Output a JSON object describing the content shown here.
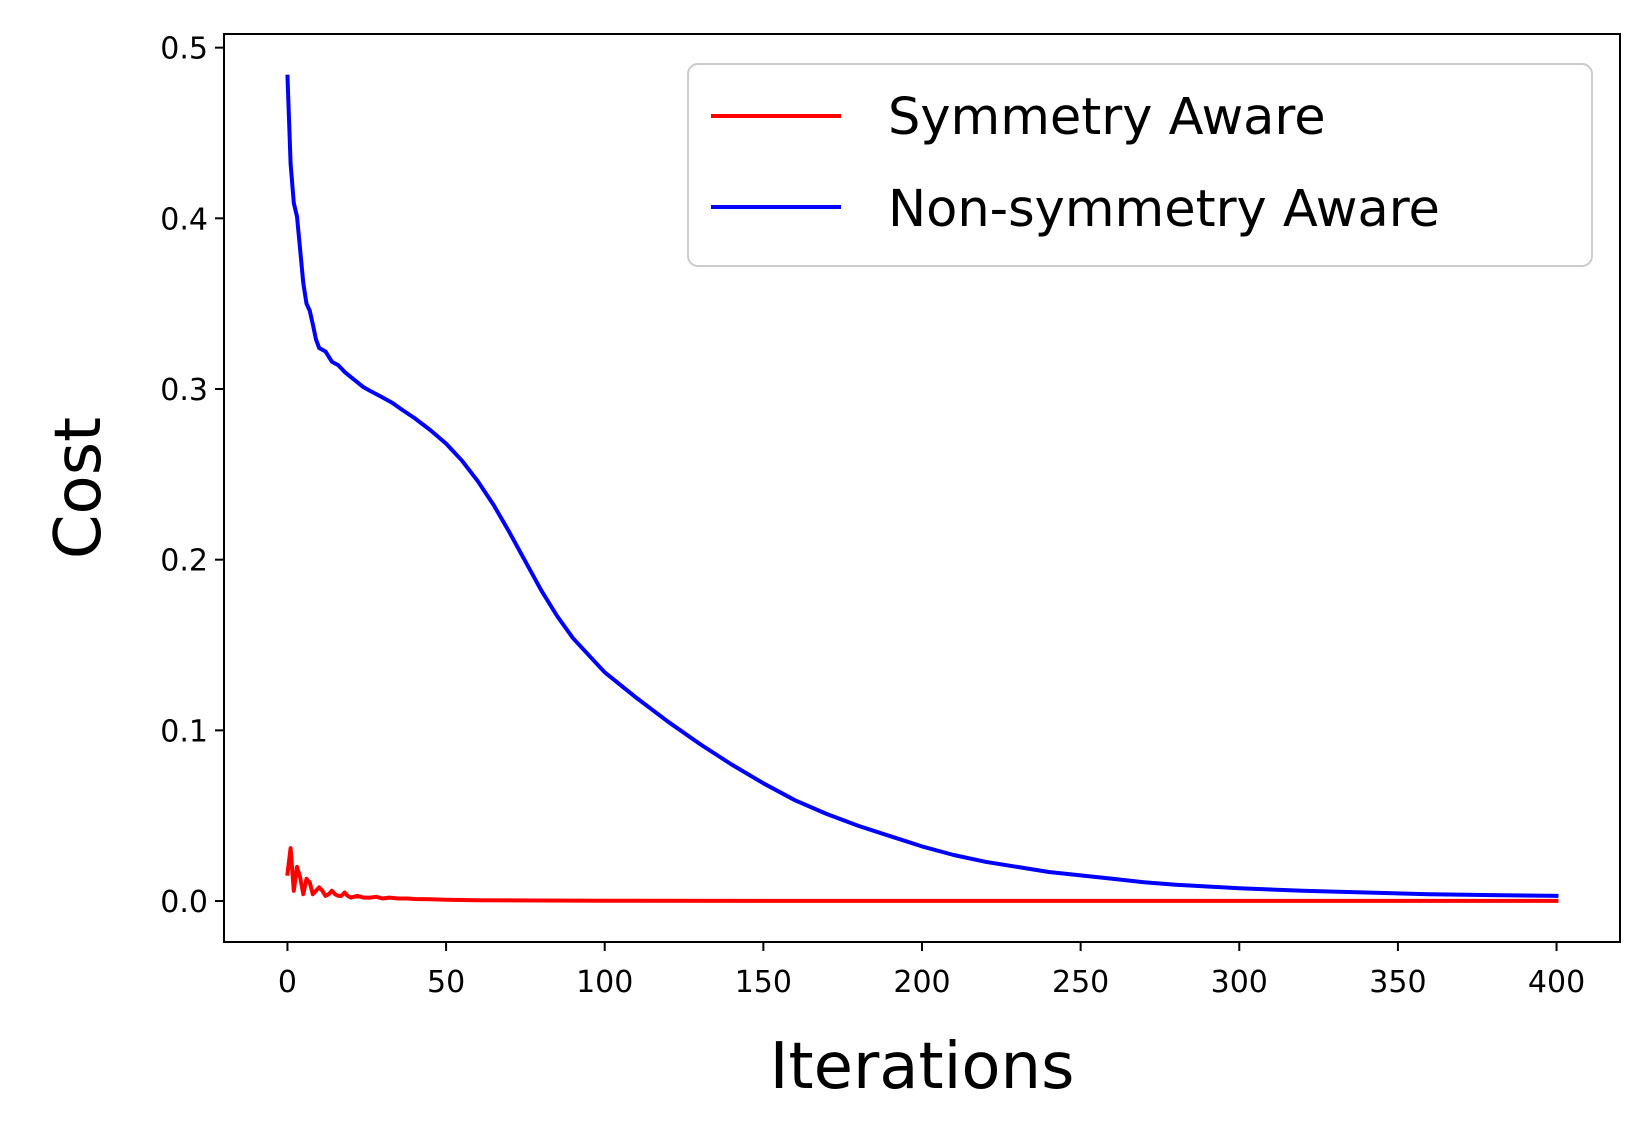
{
  "chart_data": {
    "type": "line",
    "title": "",
    "xlabel": "Iterations",
    "ylabel": "Cost",
    "xlim": [
      -20,
      420
    ],
    "ylim": [
      -0.024,
      0.508
    ],
    "xticks": [
      0,
      50,
      100,
      150,
      200,
      250,
      300,
      350,
      400
    ],
    "xtick_labels": [
      "0",
      "50",
      "100",
      "150",
      "200",
      "250",
      "300",
      "350",
      "400"
    ],
    "yticks": [
      0.0,
      0.1,
      0.2,
      0.3,
      0.4,
      0.5
    ],
    "ytick_labels": [
      "0.0",
      "0.1",
      "0.2",
      "0.3",
      "0.4",
      "0.5"
    ],
    "grid": false,
    "legend_position": "top-right",
    "series": [
      {
        "name": "Symmetry Aware",
        "color": "#ff0000",
        "x": [
          0,
          1,
          2,
          3,
          4,
          5,
          6,
          7,
          8,
          9,
          10,
          11,
          12,
          13,
          14,
          15,
          16,
          17,
          18,
          19,
          20,
          22,
          24,
          26,
          28,
          30,
          32,
          35,
          38,
          40,
          45,
          50,
          60,
          70,
          80,
          100,
          150,
          200,
          250,
          300,
          350,
          400
        ],
        "y": [
          0.016,
          0.031,
          0.006,
          0.02,
          0.014,
          0.004,
          0.013,
          0.011,
          0.004,
          0.006,
          0.008,
          0.006,
          0.003,
          0.004,
          0.006,
          0.004,
          0.003,
          0.003,
          0.005,
          0.003,
          0.002,
          0.003,
          0.002,
          0.002,
          0.0025,
          0.0015,
          0.002,
          0.0015,
          0.0015,
          0.0012,
          0.001,
          0.0008,
          0.0005,
          0.0004,
          0.0003,
          0.0002,
          0.0001,
          0.0001,
          0.0001,
          0.0001,
          0.0001,
          0.0001
        ]
      },
      {
        "name": "Non-symmetry Aware",
        "color": "#0000ff",
        "x": [
          0,
          1,
          2,
          3,
          4,
          5,
          6,
          7,
          8,
          9,
          10,
          12,
          14,
          16,
          18,
          20,
          22,
          24,
          26,
          28,
          30,
          33,
          36,
          40,
          45,
          50,
          55,
          60,
          65,
          70,
          75,
          80,
          85,
          90,
          95,
          100,
          110,
          120,
          130,
          140,
          150,
          160,
          170,
          180,
          190,
          200,
          210,
          220,
          230,
          240,
          250,
          260,
          270,
          280,
          290,
          300,
          320,
          340,
          360,
          380,
          400
        ],
        "y": [
          0.483,
          0.432,
          0.409,
          0.401,
          0.382,
          0.362,
          0.35,
          0.346,
          0.338,
          0.329,
          0.324,
          0.322,
          0.316,
          0.314,
          0.31,
          0.307,
          0.304,
          0.301,
          0.299,
          0.297,
          0.295,
          0.292,
          0.288,
          0.283,
          0.276,
          0.268,
          0.258,
          0.246,
          0.232,
          0.216,
          0.199,
          0.182,
          0.167,
          0.154,
          0.144,
          0.134,
          0.119,
          0.105,
          0.092,
          0.08,
          0.069,
          0.059,
          0.051,
          0.044,
          0.038,
          0.032,
          0.027,
          0.023,
          0.02,
          0.017,
          0.015,
          0.013,
          0.011,
          0.0095,
          0.0085,
          0.0075,
          0.006,
          0.005,
          0.004,
          0.0035,
          0.003
        ]
      }
    ]
  }
}
